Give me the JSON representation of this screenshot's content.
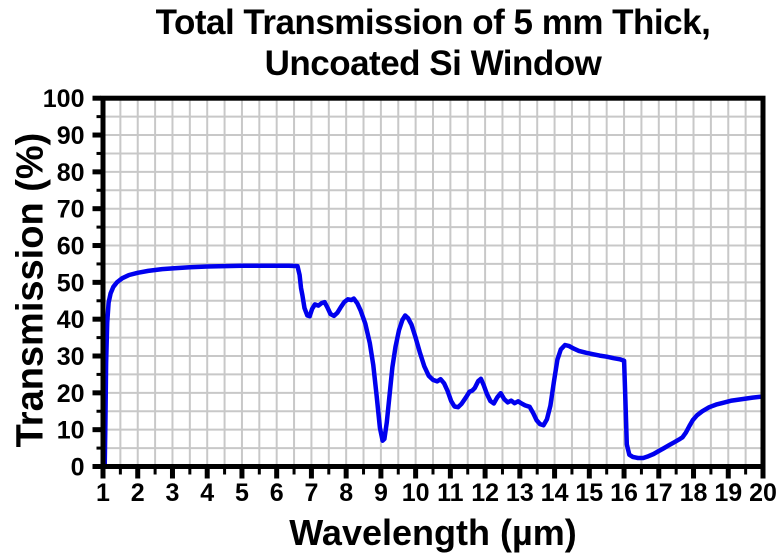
{
  "chart_data": {
    "type": "line",
    "title_line1": "Total Transmission of 5 mm Thick,",
    "title_line2": "Uncoated Si Window",
    "xlabel": "Wavelength (µm)",
    "ylabel": "Transmission (%)",
    "xlim": [
      1,
      20
    ],
    "ylim": [
      0,
      100
    ],
    "x_ticks": [
      1,
      2,
      3,
      4,
      5,
      6,
      7,
      8,
      9,
      10,
      11,
      12,
      13,
      14,
      15,
      16,
      17,
      18,
      19,
      20
    ],
    "y_ticks": [
      0,
      10,
      20,
      30,
      40,
      50,
      60,
      70,
      80,
      90,
      100
    ],
    "x_minor_step": 0.5,
    "y_minor_step": 5,
    "grid": "minor+major gridlines on",
    "legend": "none",
    "colors": {
      "line": "#0000ee",
      "grid": "#c8c8c8",
      "axis": "#000000",
      "background": "#ffffff",
      "text": "#000000"
    },
    "series": [
      {
        "name": "Total transmission of 5 mm uncoated Si window",
        "points": [
          [
            1.05,
            0
          ],
          [
            1.07,
            12
          ],
          [
            1.09,
            28
          ],
          [
            1.12,
            39
          ],
          [
            1.16,
            44.5
          ],
          [
            1.22,
            47
          ],
          [
            1.3,
            48.8
          ],
          [
            1.4,
            50
          ],
          [
            1.55,
            51.1
          ],
          [
            1.75,
            52
          ],
          [
            2.0,
            52.6
          ],
          [
            2.3,
            53.1
          ],
          [
            2.7,
            53.6
          ],
          [
            3.0,
            53.8
          ],
          [
            3.5,
            54.1
          ],
          [
            4.0,
            54.3
          ],
          [
            4.5,
            54.4
          ],
          [
            5.0,
            54.5
          ],
          [
            5.5,
            54.5
          ],
          [
            6.0,
            54.5
          ],
          [
            6.35,
            54.5
          ],
          [
            6.6,
            54.4
          ],
          [
            6.66,
            52
          ],
          [
            6.7,
            48.5
          ],
          [
            6.74,
            46.5
          ],
          [
            6.8,
            43
          ],
          [
            6.88,
            41
          ],
          [
            6.95,
            40.8
          ],
          [
            7.02,
            42.8
          ],
          [
            7.1,
            44
          ],
          [
            7.2,
            43.7
          ],
          [
            7.3,
            44.4
          ],
          [
            7.38,
            44.6
          ],
          [
            7.46,
            43.2
          ],
          [
            7.55,
            41.4
          ],
          [
            7.65,
            40.9
          ],
          [
            7.75,
            41.8
          ],
          [
            7.85,
            43.3
          ],
          [
            7.95,
            44.7
          ],
          [
            8.05,
            45.4
          ],
          [
            8.15,
            45.2
          ],
          [
            8.22,
            45.6
          ],
          [
            8.32,
            44.3
          ],
          [
            8.42,
            42.3
          ],
          [
            8.55,
            38.8
          ],
          [
            8.68,
            33.5
          ],
          [
            8.78,
            27.5
          ],
          [
            8.88,
            19
          ],
          [
            8.97,
            10.5
          ],
          [
            9.05,
            7
          ],
          [
            9.1,
            7.5
          ],
          [
            9.17,
            12
          ],
          [
            9.25,
            19.5
          ],
          [
            9.33,
            27
          ],
          [
            9.42,
            32.5
          ],
          [
            9.52,
            37
          ],
          [
            9.62,
            39.8
          ],
          [
            9.7,
            41
          ],
          [
            9.78,
            40.3
          ],
          [
            9.88,
            38.5
          ],
          [
            10.0,
            35
          ],
          [
            10.12,
            31
          ],
          [
            10.25,
            27.2
          ],
          [
            10.38,
            24.6
          ],
          [
            10.5,
            23.5
          ],
          [
            10.62,
            23.1
          ],
          [
            10.72,
            23.7
          ],
          [
            10.82,
            22.6
          ],
          [
            10.92,
            20.5
          ],
          [
            11.02,
            17.8
          ],
          [
            11.12,
            16.3
          ],
          [
            11.22,
            16.1
          ],
          [
            11.32,
            17
          ],
          [
            11.45,
            18.8
          ],
          [
            11.55,
            20.3
          ],
          [
            11.63,
            20.6
          ],
          [
            11.7,
            21.3
          ],
          [
            11.8,
            23.2
          ],
          [
            11.88,
            23.8
          ],
          [
            11.95,
            22.3
          ],
          [
            12.05,
            19.8
          ],
          [
            12.15,
            17.8
          ],
          [
            12.25,
            17.1
          ],
          [
            12.35,
            18.8
          ],
          [
            12.45,
            19.9
          ],
          [
            12.55,
            18.3
          ],
          [
            12.65,
            17.4
          ],
          [
            12.75,
            17.9
          ],
          [
            12.85,
            17.2
          ],
          [
            12.95,
            17.7
          ],
          [
            13.05,
            17.1
          ],
          [
            13.15,
            16.6
          ],
          [
            13.28,
            16.2
          ],
          [
            13.38,
            14.6
          ],
          [
            13.48,
            12.6
          ],
          [
            13.58,
            11.5
          ],
          [
            13.68,
            11.2
          ],
          [
            13.78,
            12.8
          ],
          [
            13.88,
            16.5
          ],
          [
            13.98,
            23
          ],
          [
            14.08,
            29
          ],
          [
            14.18,
            31.8
          ],
          [
            14.3,
            33
          ],
          [
            14.42,
            32.7
          ],
          [
            14.55,
            32
          ],
          [
            14.7,
            31.4
          ],
          [
            14.9,
            30.9
          ],
          [
            15.1,
            30.5
          ],
          [
            15.3,
            30.1
          ],
          [
            15.5,
            29.8
          ],
          [
            15.7,
            29.4
          ],
          [
            15.88,
            29.1
          ],
          [
            16.0,
            28.7
          ],
          [
            16.04,
            18
          ],
          [
            16.08,
            6
          ],
          [
            16.15,
            3.2
          ],
          [
            16.25,
            2.6
          ],
          [
            16.4,
            2.3
          ],
          [
            16.55,
            2.3
          ],
          [
            16.7,
            2.8
          ],
          [
            16.85,
            3.4
          ],
          [
            17.0,
            4.2
          ],
          [
            17.15,
            5
          ],
          [
            17.3,
            5.8
          ],
          [
            17.45,
            6.6
          ],
          [
            17.58,
            7.3
          ],
          [
            17.68,
            7.9
          ],
          [
            17.78,
            9.2
          ],
          [
            17.88,
            11
          ],
          [
            17.98,
            12.6
          ],
          [
            18.1,
            13.9
          ],
          [
            18.25,
            15
          ],
          [
            18.45,
            16.1
          ],
          [
            18.65,
            16.8
          ],
          [
            18.85,
            17.3
          ],
          [
            19.1,
            17.9
          ],
          [
            19.4,
            18.3
          ],
          [
            19.7,
            18.7
          ],
          [
            20.0,
            19.0
          ]
        ]
      }
    ]
  }
}
